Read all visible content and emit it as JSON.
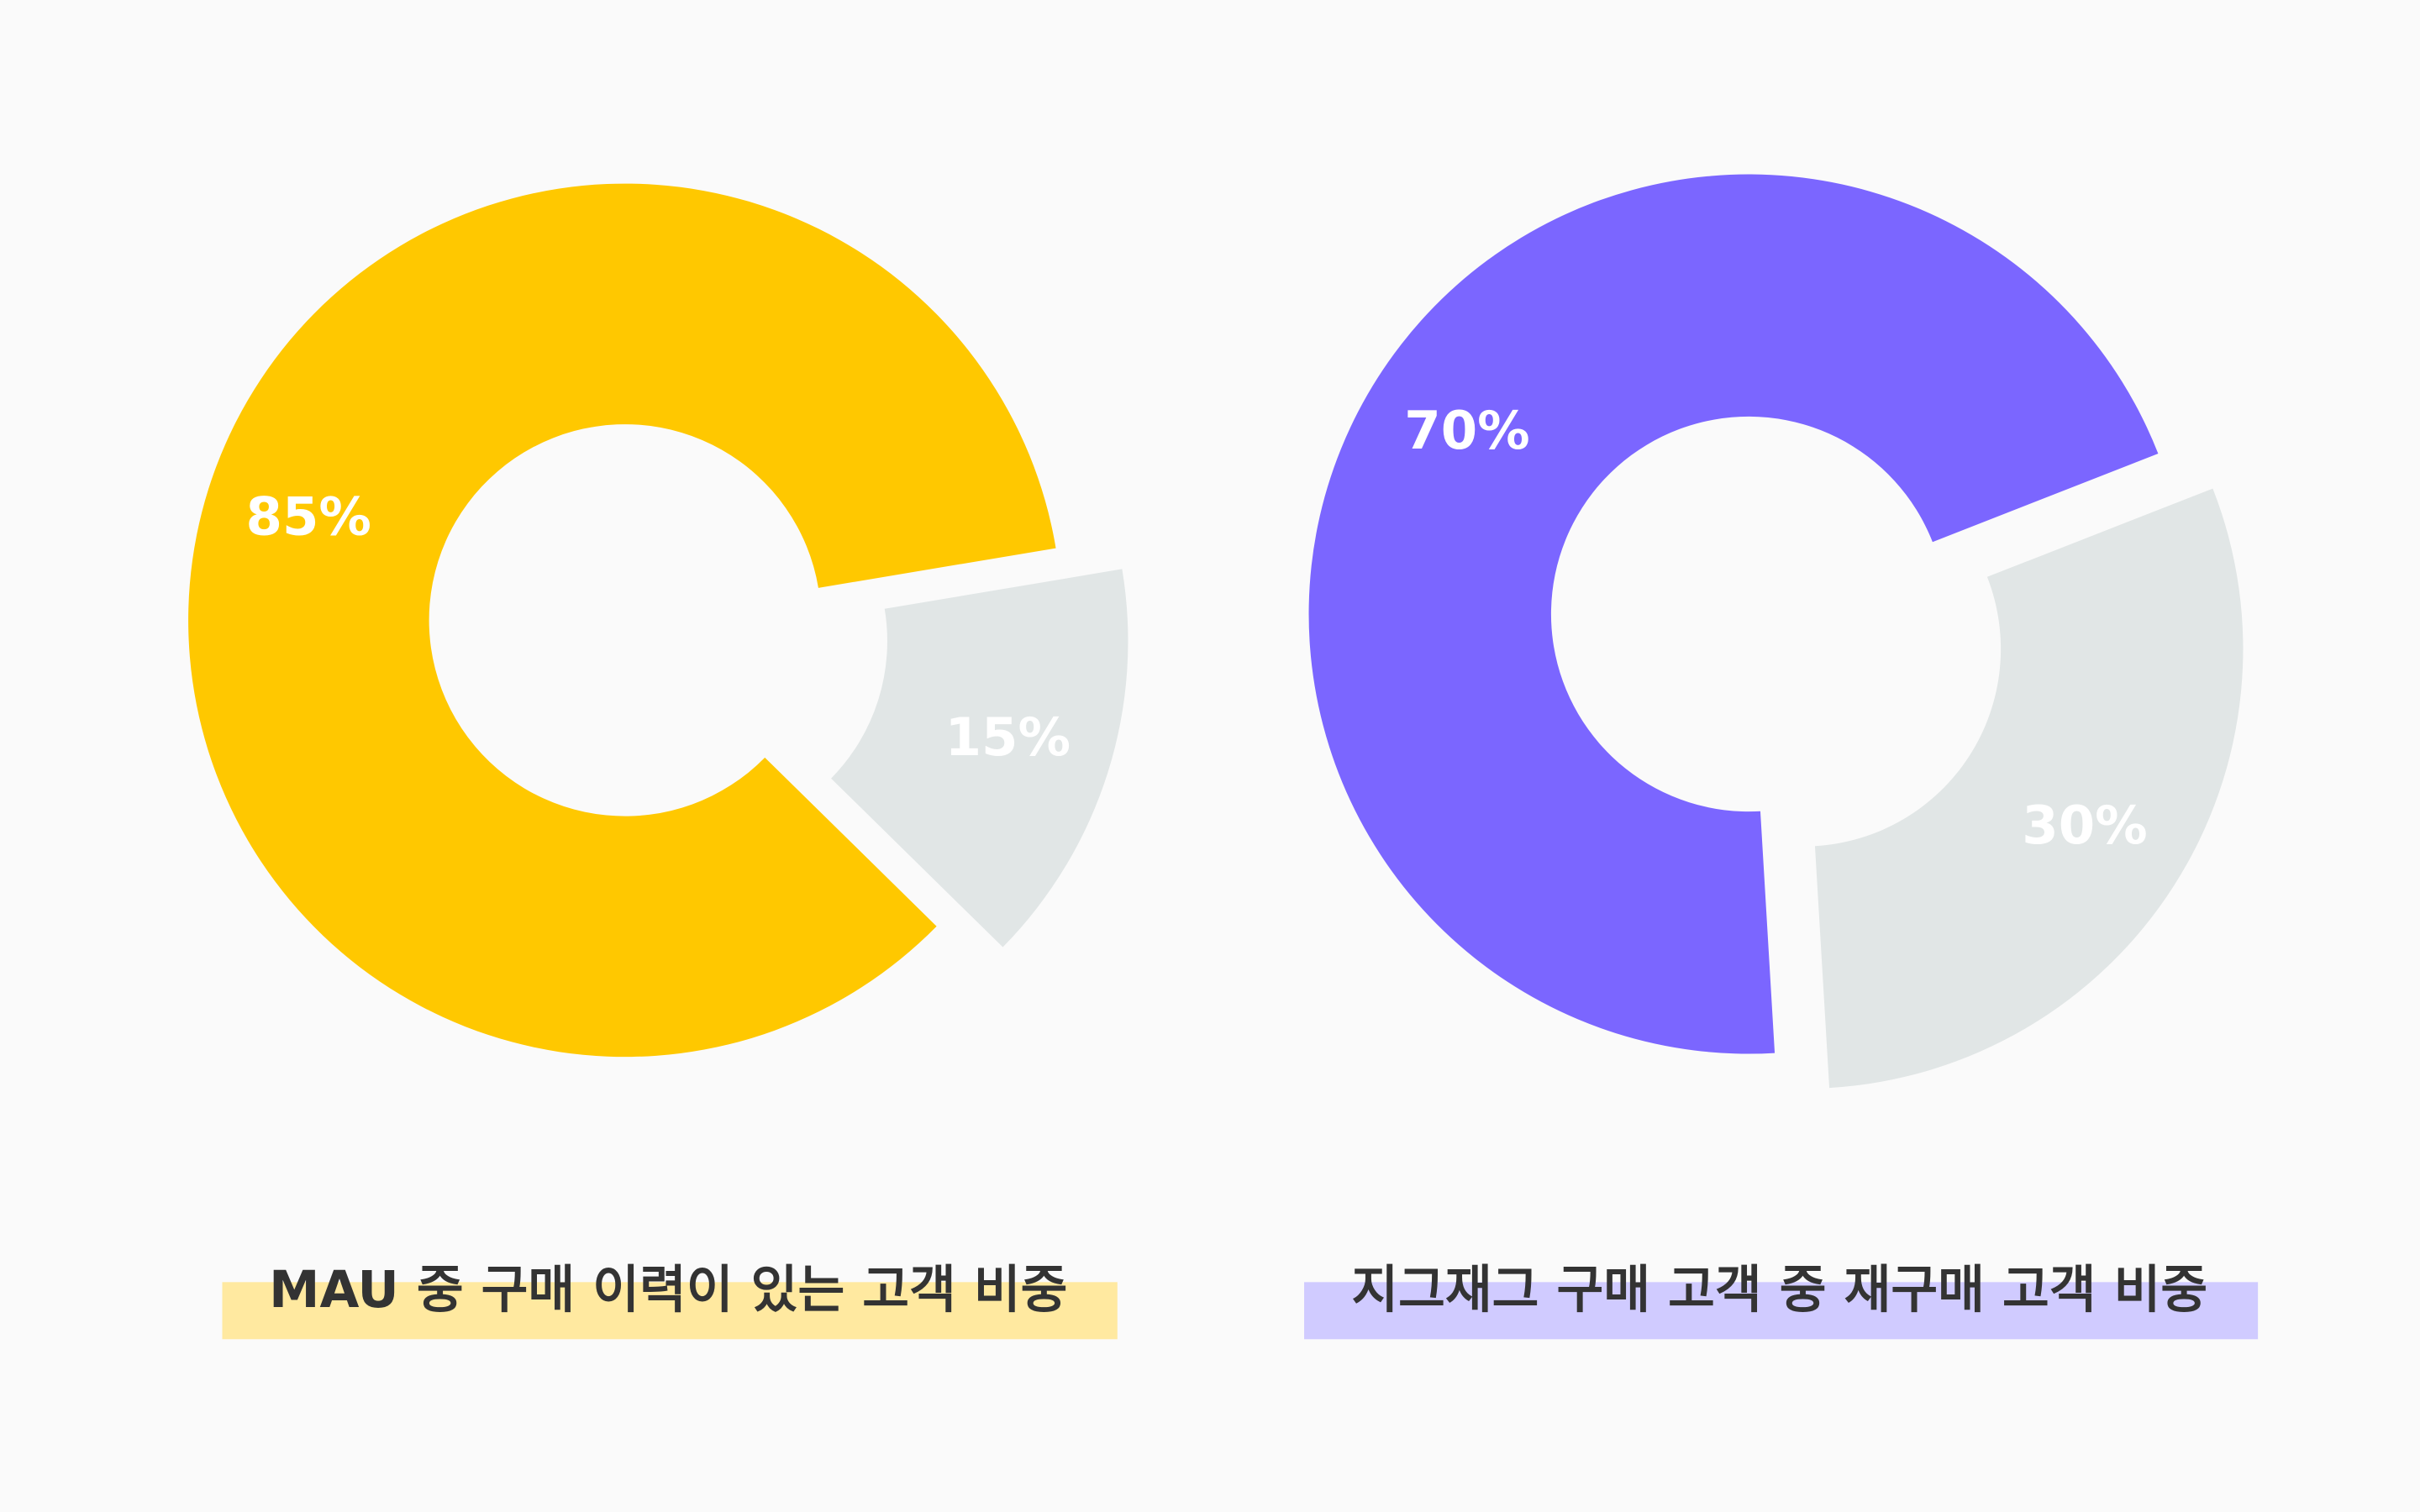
{
  "chart_data": [
    {
      "type": "pie",
      "donut": true,
      "title": "MAU 중 구매 이력이 있는 고객 비중",
      "values": [
        85,
        15
      ],
      "value_labels": [
        "85%",
        "15%"
      ],
      "colors": [
        "#ffc800",
        "#e1e6e6"
      ],
      "highlight_color": "#ffe9a0"
    },
    {
      "type": "pie",
      "donut": true,
      "title": "지그재그 구매 고객 중 재구매 고객 비중",
      "values": [
        70,
        30
      ],
      "value_labels": [
        "70%",
        "30%"
      ],
      "colors": [
        "#7b66ff",
        "#e1e6e6"
      ],
      "highlight_color": "#d0cbff"
    }
  ]
}
